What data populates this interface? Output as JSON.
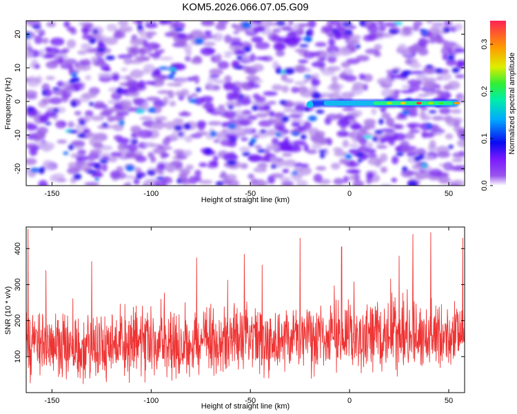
{
  "title": "KOM5.2026.066.07.05.G09",
  "colors": {
    "snr_line": "#ee3333",
    "axis": "#000000",
    "background": "#ffffff"
  },
  "chart_data": [
    {
      "type": "heatmap",
      "name": "spectrogram",
      "xlabel": "Height of straight line (km)",
      "ylabel": "Frequency (Hz)",
      "xlim": [
        -163,
        58
      ],
      "ylim": [
        -25,
        24
      ],
      "xticks": [
        -150,
        -100,
        -50,
        0,
        50
      ],
      "yticks": [
        -20,
        -10,
        0,
        10,
        20
      ],
      "colorbar": {
        "label": "Normalized spectral amplitude",
        "range": [
          0.0,
          0.35
        ],
        "ticks": [
          0.0,
          0.1,
          0.2,
          0.3
        ],
        "colormap": "rainbow"
      },
      "features": [
        {
          "description": "signal track",
          "frequency_hz": -0.5,
          "x_start_km": -20,
          "x_end_km": 55,
          "peak_amplitude": 0.33
        }
      ]
    },
    {
      "type": "line",
      "name": "snr",
      "xlabel": "Height of straight line (km)",
      "ylabel": "SNR (10 * v/v)",
      "xlim": [
        -163,
        58
      ],
      "ylim": [
        0,
        460
      ],
      "xticks": [
        -150,
        -100,
        -50,
        0,
        50
      ],
      "yticks": [
        100,
        200,
        300,
        400
      ],
      "series": [
        {
          "name": "SNR",
          "x_range": [
            -163,
            58
          ],
          "samples": 1400,
          "mean_left": 125,
          "mean_right": 160,
          "spread": 150,
          "peaks": [
            {
              "x": -162,
              "y": 455
            },
            {
              "x": -153,
              "y": 340
            },
            {
              "x": -130,
              "y": 365
            },
            {
              "x": -77,
              "y": 375
            },
            {
              "x": -53,
              "y": 385
            },
            {
              "x": -44,
              "y": 355
            },
            {
              "x": -25,
              "y": 430
            },
            {
              "x": -4,
              "y": 405
            },
            {
              "x": 25,
              "y": 380
            },
            {
              "x": 32,
              "y": 440
            },
            {
              "x": 41,
              "y": 445
            },
            {
              "x": 57,
              "y": 430
            }
          ]
        }
      ]
    }
  ]
}
